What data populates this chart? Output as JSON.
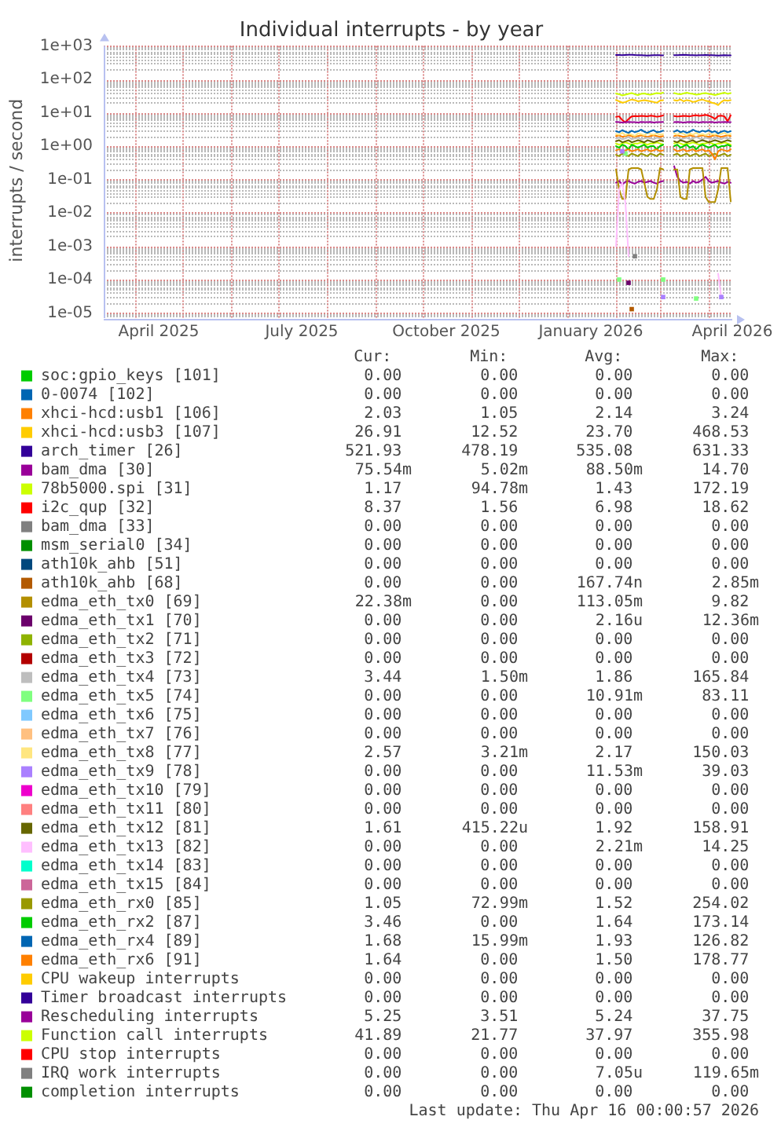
{
  "chart_data": {
    "type": "line",
    "title": "Individual interrupts - by year",
    "ylabel": "interrupts / second",
    "log": true,
    "grid": true,
    "legend": "bottom",
    "xlim": [
      "2025-03-12",
      "2026-04-16"
    ],
    "xticks": [
      {
        "value": "2025-04-01",
        "label": null
      },
      {
        "value": "2025-04-16",
        "label": "April 2025"
      },
      {
        "value": "2025-05-01",
        "label": null
      },
      {
        "value": "2025-06-01",
        "label": null
      },
      {
        "value": "2025-07-01",
        "label": null
      },
      {
        "value": "2025-07-16",
        "label": "July 2025"
      },
      {
        "value": "2025-08-01",
        "label": null
      },
      {
        "value": "2025-09-01",
        "label": null
      },
      {
        "value": "2025-10-01",
        "label": null
      },
      {
        "value": "2025-10-16",
        "label": "October 2025"
      },
      {
        "value": "2025-11-01",
        "label": null
      },
      {
        "value": "2025-12-01",
        "label": null
      },
      {
        "value": "2026-01-01",
        "label": null
      },
      {
        "value": "2026-01-16",
        "label": "January 2026"
      },
      {
        "value": "2026-02-01",
        "label": null
      },
      {
        "value": "2026-03-01",
        "label": null
      },
      {
        "value": "2026-04-01",
        "label": null
      },
      {
        "value": "2026-04-16",
        "label": "April 2026"
      }
    ],
    "ylim": [
      7e-06,
      1000
    ],
    "yticks": [
      {
        "value": 8e-06,
        "label": null
      },
      {
        "value": 9e-06,
        "label": null
      },
      {
        "value": 1e-05,
        "label": "1e-05"
      },
      {
        "value": 2e-05,
        "label": null
      },
      {
        "value": 3e-05,
        "label": null
      },
      {
        "value": 4e-05,
        "label": null
      },
      {
        "value": 5e-05,
        "label": null
      },
      {
        "value": 6e-05,
        "label": null
      },
      {
        "value": 7e-05,
        "label": null
      },
      {
        "value": 8e-05,
        "label": null
      },
      {
        "value": 9e-05,
        "label": null
      },
      {
        "value": 0.0001,
        "label": "1e-04"
      },
      {
        "value": 0.0002,
        "label": null
      },
      {
        "value": 0.0003,
        "label": null
      },
      {
        "value": 0.0004,
        "label": null
      },
      {
        "value": 0.0005,
        "label": null
      },
      {
        "value": 0.0006,
        "label": null
      },
      {
        "value": 0.0007,
        "label": null
      },
      {
        "value": 0.0008,
        "label": null
      },
      {
        "value": 0.0009,
        "label": null
      },
      {
        "value": 0.001,
        "label": "1e-03"
      },
      {
        "value": 0.002,
        "label": null
      },
      {
        "value": 0.003,
        "label": null
      },
      {
        "value": 0.004,
        "label": null
      },
      {
        "value": 0.005,
        "label": null
      },
      {
        "value": 0.006,
        "label": null
      },
      {
        "value": 0.007,
        "label": null
      },
      {
        "value": 0.008,
        "label": null
      },
      {
        "value": 0.009,
        "label": null
      },
      {
        "value": 0.01,
        "label": "1e-02"
      },
      {
        "value": 0.02,
        "label": null
      },
      {
        "value": 0.03,
        "label": null
      },
      {
        "value": 0.04,
        "label": null
      },
      {
        "value": 0.05,
        "label": null
      },
      {
        "value": 0.06,
        "label": null
      },
      {
        "value": 0.07,
        "label": null
      },
      {
        "value": 0.08,
        "label": null
      },
      {
        "value": 0.09,
        "label": null
      },
      {
        "value": 0.1,
        "label": "1e-01"
      },
      {
        "value": 0.2,
        "label": null
      },
      {
        "value": 0.3,
        "label": null
      },
      {
        "value": 0.4,
        "label": null
      },
      {
        "value": 0.5,
        "label": null
      },
      {
        "value": 0.6,
        "label": null
      },
      {
        "value": 0.7,
        "label": null
      },
      {
        "value": 0.8,
        "label": null
      },
      {
        "value": 0.9,
        "label": null
      },
      {
        "value": 1,
        "label": "1e+00"
      },
      {
        "value": 2,
        "label": null
      },
      {
        "value": 3,
        "label": null
      },
      {
        "value": 4,
        "label": null
      },
      {
        "value": 5,
        "label": null
      },
      {
        "value": 6,
        "label": null
      },
      {
        "value": 7,
        "label": null
      },
      {
        "value": 8,
        "label": null
      },
      {
        "value": 9,
        "label": null
      },
      {
        "value": 10,
        "label": "1e+01"
      },
      {
        "value": 20,
        "label": null
      },
      {
        "value": 30,
        "label": null
      },
      {
        "value": 40,
        "label": null
      },
      {
        "value": 50,
        "label": null
      },
      {
        "value": 60,
        "label": null
      },
      {
        "value": 70,
        "label": null
      },
      {
        "value": 80,
        "label": null
      },
      {
        "value": 90,
        "label": null
      },
      {
        "value": 100,
        "label": "1e+02"
      },
      {
        "value": 200,
        "label": null
      },
      {
        "value": 300,
        "label": null
      },
      {
        "value": 400,
        "label": null
      },
      {
        "value": 500,
        "label": null
      },
      {
        "value": 600,
        "label": null
      },
      {
        "value": 700,
        "label": null
      },
      {
        "value": 800,
        "label": null
      },
      {
        "value": 900,
        "label": null
      },
      {
        "value": 1000,
        "label": "1e+03"
      }
    ],
    "x": [
      "2026-02-01",
      "2026-02-03",
      "2026-02-05",
      "2026-02-07",
      "2026-02-09",
      "2026-02-11",
      "2026-02-13",
      "2026-02-15",
      "2026-02-17",
      "2026-02-19",
      "2026-02-21",
      "2026-02-23",
      "2026-02-25",
      "2026-02-27",
      "2026-03-01",
      "2026-03-03",
      "2026-03-06",
      "2026-03-10",
      "2026-03-12",
      "2026-03-14",
      "2026-03-16",
      "2026-03-18",
      "2026-03-20",
      "2026-03-22",
      "2026-03-24",
      "2026-03-26",
      "2026-03-28",
      "2026-03-30",
      "2026-04-01",
      "2026-04-03",
      "2026-04-05",
      "2026-04-07",
      "2026-04-09",
      "2026-04-11",
      "2026-04-13",
      "2026-04-15"
    ],
    "series": [
      {
        "name": "soc:gpio_keys [101]",
        "color": "#00cc00",
        "values": [
          null,
          null,
          null,
          null,
          null,
          null,
          null,
          null,
          null,
          null,
          null,
          null,
          null,
          null,
          null,
          null,
          null,
          null,
          null,
          null,
          null,
          null,
          null,
          null,
          null,
          null,
          null,
          null,
          null,
          null,
          null,
          null,
          null,
          null,
          null,
          null
        ]
      },
      {
        "name": "0-0074 [102]",
        "color": "#0066b3",
        "values": [
          null,
          null,
          null,
          null,
          null,
          null,
          null,
          null,
          null,
          null,
          null,
          null,
          null,
          null,
          null,
          null,
          null,
          null,
          null,
          null,
          null,
          null,
          null,
          null,
          null,
          null,
          null,
          null,
          null,
          null,
          null,
          null,
          null,
          null,
          null,
          null
        ]
      },
      {
        "name": "xhci-hcd:usb1 [106]",
        "color": "#ff8000",
        "values": [
          2.0,
          2.1,
          1.9,
          2.0,
          2.1,
          2.0,
          1.9,
          2.0,
          2.1,
          2.0,
          1.9,
          2.0,
          2.1,
          2.0,
          1.9,
          2.0,
          null,
          2.0,
          2.1,
          2.0,
          1.9,
          2.0,
          2.1,
          2.0,
          1.9,
          2.0,
          2.1,
          2.0,
          1.9,
          2.0,
          2.1,
          2.0,
          1.9,
          2.0,
          2.1,
          2.0
        ]
      },
      {
        "name": "xhci-hcd:usb3 [107]",
        "color": "#ffcc00",
        "values": [
          24,
          22,
          20,
          21,
          23,
          25,
          24,
          22,
          23,
          24,
          23,
          22,
          21,
          20,
          23,
          24,
          null,
          24,
          23,
          25,
          22,
          24,
          23,
          21,
          22,
          24,
          25,
          23,
          22,
          20,
          19,
          17,
          21,
          24,
          23,
          24
        ]
      },
      {
        "name": "arch_timer [26]",
        "color": "#330099",
        "values": [
          540,
          538,
          535,
          540,
          545,
          550,
          540,
          535,
          530,
          525,
          520,
          525,
          530,
          535,
          530,
          528,
          null,
          530,
          535,
          540,
          545,
          540,
          535,
          530,
          525,
          530,
          535,
          540,
          535,
          530,
          525,
          520,
          525,
          530,
          525,
          522
        ]
      },
      {
        "name": "bam_dma [30]",
        "color": "#990099",
        "values": [
          0.08,
          0.09,
          0.07,
          0.085,
          0.09,
          0.08,
          0.075,
          0.085,
          0.09,
          0.08,
          0.085,
          0.09,
          0.08,
          0.075,
          0.085,
          0.09,
          null,
          0.25,
          0.12,
          0.09,
          0.08,
          0.085,
          0.075,
          0.09,
          0.08,
          0.085,
          0.1,
          0.12,
          0.09,
          0.08,
          0.085,
          0.09,
          0.08,
          0.075,
          0.085,
          0.08
        ]
      },
      {
        "name": "78b5000.spi [31]",
        "color": "#ccff00",
        "values": [
          1.2,
          1.1,
          1.2,
          1.3,
          1.2,
          1.1,
          1.2,
          1.2,
          1.3,
          1.2,
          1.1,
          1.2,
          1.2,
          1.3,
          1.2,
          1.1,
          null,
          1.2,
          1.3,
          1.2,
          1.1,
          1.2,
          1.2,
          1.3,
          1.2,
          1.1,
          1.2,
          1.2,
          1.3,
          1.2,
          1.1,
          1.2,
          1.2,
          1.3,
          1.2,
          1.1
        ]
      },
      {
        "name": "i2c_qup [32]",
        "color": "#ff0000",
        "values": [
          7.5,
          7.8,
          6.0,
          5.2,
          6.5,
          7.8,
          8.0,
          7.9,
          8.1,
          8.0,
          7.8,
          8.2,
          8.0,
          7.6,
          7.9,
          8.3,
          null,
          8.0,
          7.7,
          7.9,
          8.1,
          8.0,
          7.8,
          8.2,
          8.4,
          8.1,
          8.3,
          8.6,
          8.2,
          7.5,
          6.5,
          8.0,
          8.2,
          7.8,
          5.5,
          8.4
        ]
      },
      {
        "name": "bam_dma [33]",
        "color": "#808080",
        "values": [
          null,
          null,
          null,
          null,
          null,
          null,
          null,
          null,
          null,
          null,
          null,
          null,
          null,
          null,
          null,
          null,
          null,
          null,
          null,
          null,
          null,
          null,
          null,
          null,
          null,
          null,
          null,
          null,
          null,
          null,
          null,
          null,
          null,
          null,
          null,
          null
        ]
      },
      {
        "name": "msm_serial0 [34]",
        "color": "#008f00",
        "values": [
          null,
          null,
          null,
          null,
          null,
          null,
          null,
          null,
          null,
          null,
          null,
          null,
          null,
          null,
          null,
          null,
          null,
          null,
          null,
          null,
          null,
          null,
          null,
          null,
          null,
          null,
          null,
          null,
          null,
          null,
          null,
          null,
          null,
          null,
          null,
          null
        ]
      },
      {
        "name": "ath10k_ahb [51]",
        "color": "#00487d",
        "values": [
          null,
          null,
          null,
          null,
          null,
          null,
          null,
          null,
          null,
          null,
          null,
          null,
          null,
          null,
          null,
          null,
          null,
          null,
          null,
          null,
          null,
          null,
          null,
          null,
          null,
          null,
          null,
          null,
          null,
          null,
          null,
          null,
          null,
          null,
          null,
          null
        ]
      },
      {
        "name": "ath10k_ahb [68]",
        "color": "#b35a00",
        "type": "scatter",
        "marker": "square",
        "values": [
          null,
          null,
          null,
          null,
          null,
          1.3e-05,
          null,
          null,
          null,
          null,
          null,
          null,
          null,
          null,
          null,
          null,
          null,
          null,
          null,
          null,
          null,
          null,
          null,
          null,
          null,
          null,
          null,
          null,
          null,
          null,
          null,
          null,
          null,
          null,
          null,
          null
        ]
      },
      {
        "name": "edma_eth_tx0 [69]",
        "color": "#b38f00",
        "values": [
          0.2,
          0.05,
          0.026,
          0.026,
          0.2,
          0.22,
          0.22,
          0.22,
          0.2,
          0.08,
          0.03,
          0.026,
          0.026,
          0.05,
          0.22,
          0.2,
          null,
          0.2,
          0.2,
          0.03,
          0.026,
          0.026,
          0.2,
          0.22,
          0.22,
          0.22,
          0.22,
          0.03,
          0.021,
          0.021,
          0.021,
          0.05,
          0.22,
          0.22,
          0.22,
          0.022
        ]
      },
      {
        "name": "edma_eth_tx1 [70]",
        "color": "#6b006b",
        "type": "scatter",
        "marker": "square",
        "values": [
          null,
          null,
          null,
          null,
          8e-05,
          null,
          null,
          null,
          null,
          null,
          null,
          null,
          null,
          null,
          null,
          null,
          null,
          null,
          null,
          null,
          null,
          null,
          null,
          null,
          null,
          null,
          null,
          null,
          null,
          null,
          null,
          null,
          null,
          null,
          null,
          null
        ]
      },
      {
        "name": "edma_eth_tx2 [71]",
        "color": "#8fb300",
        "values": [
          null,
          null,
          null,
          null,
          null,
          null,
          null,
          null,
          null,
          null,
          null,
          null,
          null,
          null,
          null,
          null,
          null,
          null,
          null,
          null,
          null,
          null,
          null,
          null,
          null,
          null,
          null,
          null,
          null,
          null,
          null,
          null,
          null,
          null,
          null,
          null
        ]
      },
      {
        "name": "edma_eth_tx3 [72]",
        "color": "#b30000",
        "values": [
          null,
          null,
          null,
          null,
          null,
          null,
          null,
          null,
          null,
          null,
          null,
          null,
          null,
          null,
          null,
          null,
          null,
          null,
          null,
          null,
          null,
          null,
          null,
          null,
          null,
          null,
          null,
          null,
          null,
          null,
          null,
          null,
          null,
          null,
          null,
          null
        ]
      },
      {
        "name": "edma_eth_tx4 [73]",
        "color": "#bebebe",
        "values": [
          1.7,
          1.8,
          1.6,
          1.7,
          1.9,
          1.6,
          1.7,
          1.8,
          1.6,
          1.7,
          1.8,
          1.7,
          1.6,
          1.8,
          1.7,
          1.6,
          null,
          1.7,
          1.8,
          1.6,
          1.7,
          1.8,
          1.6,
          1.7,
          1.9,
          1.7,
          1.6,
          1.8,
          1.7,
          1.6,
          1.8,
          1.7,
          1.6,
          1.8,
          1.7,
          1.7
        ]
      },
      {
        "name": "edma_eth_tx5 [74]",
        "color": "#80ff80",
        "type": "scatter",
        "marker": "square",
        "values": [
          null,
          0.0001,
          null,
          0.6,
          null,
          null,
          null,
          null,
          null,
          null,
          null,
          null,
          null,
          null,
          null,
          0.0001,
          null,
          null,
          null,
          null,
          null,
          null,
          null,
          null,
          2.7e-05,
          null,
          null,
          null,
          null,
          null,
          null,
          null,
          null,
          null,
          null,
          null
        ]
      },
      {
        "name": "edma_eth_tx6 [75]",
        "color": "#80c9ff",
        "values": [
          null,
          null,
          null,
          null,
          null,
          null,
          null,
          null,
          null,
          null,
          null,
          null,
          null,
          null,
          null,
          null,
          null,
          null,
          null,
          null,
          null,
          null,
          null,
          null,
          null,
          null,
          null,
          null,
          null,
          null,
          null,
          null,
          null,
          null,
          null,
          null
        ]
      },
      {
        "name": "edma_eth_tx7 [76]",
        "color": "#ffc080",
        "values": [
          null,
          null,
          null,
          null,
          null,
          null,
          null,
          null,
          null,
          null,
          null,
          null,
          null,
          null,
          null,
          null,
          null,
          null,
          null,
          null,
          null,
          null,
          null,
          null,
          null,
          null,
          null,
          null,
          null,
          null,
          null,
          null,
          null,
          null,
          null,
          null
        ]
      },
      {
        "name": "edma_eth_tx8 [77]",
        "color": "#ffe680",
        "values": [
          2.3,
          2.2,
          2.5,
          2.1,
          2.4,
          2.2,
          2.0,
          2.4,
          2.3,
          2.1,
          2.5,
          2.3,
          2.2,
          2.4,
          2.2,
          2.3,
          null,
          2.4,
          2.2,
          2.5,
          2.3,
          2.1,
          2.4,
          2.2,
          2.5,
          2.2,
          2.3,
          2.1,
          2.4,
          2.3,
          2.2,
          2.4,
          2.3,
          2.5,
          2.2,
          2.3
        ]
      },
      {
        "name": "edma_eth_tx9 [78]",
        "color": "#aa80ff",
        "type": "scatter",
        "marker": "square",
        "values": [
          null,
          null,
          0.7,
          null,
          null,
          null,
          null,
          null,
          null,
          null,
          null,
          null,
          null,
          null,
          null,
          3e-05,
          null,
          null,
          null,
          null,
          null,
          null,
          null,
          null,
          null,
          null,
          null,
          null,
          null,
          null,
          null,
          null,
          3e-05,
          null,
          null,
          null
        ]
      },
      {
        "name": "edma_eth_tx10 [79]",
        "color": "#ee00cc",
        "values": [
          null,
          null,
          null,
          null,
          null,
          null,
          null,
          null,
          null,
          null,
          null,
          null,
          null,
          null,
          null,
          null,
          null,
          null,
          null,
          null,
          null,
          null,
          null,
          null,
          null,
          null,
          null,
          null,
          null,
          null,
          null,
          null,
          null,
          null,
          null,
          null
        ]
      },
      {
        "name": "edma_eth_tx11 [80]",
        "color": "#ff8080",
        "values": [
          null,
          null,
          null,
          null,
          null,
          null,
          null,
          null,
          null,
          null,
          null,
          null,
          null,
          null,
          null,
          null,
          null,
          null,
          null,
          null,
          null,
          null,
          null,
          null,
          null,
          null,
          null,
          null,
          null,
          null,
          null,
          null,
          null,
          null,
          null,
          null
        ]
      },
      {
        "name": "edma_eth_tx12 [81]",
        "color": "#666600",
        "values": [
          1.4,
          1.5,
          1.3,
          1.4,
          1.5,
          1.3,
          1.4,
          1.5,
          1.4,
          1.3,
          1.5,
          1.4,
          1.3,
          1.4,
          1.5,
          1.4,
          null,
          1.4,
          1.3,
          1.5,
          1.4,
          1.3,
          1.4,
          1.5,
          1.3,
          1.4,
          1.5,
          1.4,
          1.3,
          1.4,
          1.5,
          1.4,
          1.3,
          1.4,
          1.5,
          1.4
        ]
      },
      {
        "name": "edma_eth_tx13 [82]",
        "color": "#ffbfff",
        "values": [
          0.001,
          0.05,
          0.08,
          0.02,
          0.0005,
          null,
          null,
          null,
          null,
          null,
          null,
          null,
          null,
          null,
          null,
          null,
          null,
          null,
          null,
          null,
          null,
          null,
          null,
          null,
          null,
          null,
          null,
          null,
          null,
          null,
          null,
          0.00015,
          3e-05,
          null,
          null,
          null
        ]
      },
      {
        "name": "edma_eth_tx14 [83]",
        "color": "#00ffcc",
        "values": [
          null,
          null,
          null,
          null,
          null,
          null,
          null,
          null,
          null,
          null,
          null,
          null,
          null,
          null,
          null,
          null,
          null,
          null,
          null,
          null,
          null,
          null,
          null,
          null,
          null,
          null,
          null,
          null,
          null,
          null,
          null,
          null,
          null,
          null,
          null,
          null
        ]
      },
      {
        "name": "edma_eth_tx15 [84]",
        "color": "#cc6699",
        "values": [
          null,
          null,
          null,
          null,
          null,
          null,
          null,
          null,
          null,
          null,
          null,
          null,
          null,
          null,
          null,
          null,
          null,
          null,
          null,
          null,
          null,
          null,
          null,
          null,
          null,
          null,
          null,
          null,
          null,
          null,
          null,
          null,
          null,
          null,
          null,
          null
        ]
      },
      {
        "name": "edma_eth_rx0 [85]",
        "color": "#999900",
        "values": [
          0.55,
          0.5,
          0.6,
          0.55,
          0.5,
          0.6,
          0.55,
          0.5,
          0.6,
          0.55,
          0.5,
          0.6,
          0.55,
          0.5,
          0.6,
          0.55,
          null,
          0.55,
          0.6,
          0.5,
          0.55,
          0.6,
          0.5,
          0.55,
          0.6,
          0.5,
          0.55,
          0.6,
          0.5,
          0.55,
          0.6,
          0.5,
          0.55,
          0.6,
          0.5,
          0.55
        ]
      },
      {
        "name": "edma_eth_rx2 [87]",
        "color": "#00cc00",
        "values": [
          1.0,
          0.9,
          1.1,
          1.0,
          0.8,
          1.1,
          1.0,
          0.9,
          1.0,
          1.1,
          0.9,
          1.0,
          1.0,
          0.8,
          1.0,
          1.1,
          null,
          1.0,
          1.1,
          0.9,
          1.0,
          1.1,
          0.9,
          1.0,
          0.8,
          1.0,
          1.1,
          1.0,
          0.9,
          1.0,
          1.1,
          0.9,
          1.0,
          1.0,
          1.1,
          1.0
        ]
      },
      {
        "name": "edma_eth_rx4 [89]",
        "color": "#0066b3",
        "values": [
          2.8,
          2.6,
          3.0,
          2.7,
          2.5,
          2.9,
          2.6,
          2.8,
          3.1,
          2.7,
          2.5,
          2.8,
          3.0,
          2.6,
          2.7,
          2.9,
          null,
          2.7,
          3.0,
          2.6,
          2.8,
          2.5,
          2.7,
          3.1,
          2.8,
          2.6,
          2.9,
          2.7,
          3.0,
          2.6,
          2.8,
          2.4,
          2.7,
          2.9,
          2.6,
          2.8
        ]
      },
      {
        "name": "edma_eth_rx6 [91]",
        "color": "#ff8000",
        "values": [
          0.75,
          0.8,
          0.7,
          0.75,
          0.8,
          0.7,
          0.75,
          0.8,
          0.7,
          0.75,
          0.8,
          0.7,
          0.75,
          0.8,
          0.7,
          0.75,
          null,
          0.8,
          0.7,
          0.75,
          0.8,
          0.7,
          0.75,
          0.8,
          0.7,
          0.75,
          0.8,
          0.7,
          0.75,
          0.6,
          0.4,
          0.7,
          0.8,
          0.75,
          0.7,
          0.8
        ]
      },
      {
        "name": "CPU wakeup interrupts",
        "color": "#ffcc00",
        "values": [
          null,
          null,
          null,
          null,
          null,
          null,
          null,
          null,
          null,
          null,
          null,
          null,
          null,
          null,
          null,
          null,
          null,
          null,
          null,
          null,
          null,
          null,
          null,
          null,
          null,
          null,
          null,
          null,
          null,
          null,
          null,
          null,
          null,
          null,
          null,
          null
        ]
      },
      {
        "name": "Timer broadcast interrupts",
        "color": "#330099",
        "values": [
          null,
          null,
          null,
          null,
          null,
          null,
          null,
          null,
          null,
          null,
          null,
          null,
          null,
          null,
          null,
          null,
          null,
          null,
          null,
          null,
          null,
          null,
          null,
          null,
          null,
          null,
          null,
          null,
          null,
          null,
          null,
          null,
          null,
          null,
          null,
          null
        ]
      },
      {
        "name": "Rescheduling interrupts",
        "color": "#990099",
        "values": [
          5.3,
          5.2,
          5.1,
          5.2,
          5.3,
          5.2,
          5.2,
          5.1,
          5.3,
          5.2,
          5.2,
          5.3,
          5.1,
          5.2,
          5.2,
          5.3,
          null,
          5.2,
          5.3,
          5.2,
          5.1,
          5.2,
          5.3,
          5.2,
          5.2,
          5.1,
          5.3,
          5.2,
          5.2,
          5.3,
          5.1,
          5.2,
          5.2,
          5.3,
          5.2,
          5.2
        ]
      },
      {
        "name": "Function call interrupts",
        "color": "#ccff00",
        "values": [
          38,
          36,
          33,
          35,
          37,
          39,
          36,
          34,
          37,
          38,
          36,
          35,
          37,
          39,
          38,
          40,
          null,
          39,
          37,
          36,
          38,
          40,
          38,
          37,
          35,
          36,
          38,
          39,
          37,
          36,
          34,
          36,
          38,
          40,
          37,
          39
        ]
      },
      {
        "name": "CPU stop interrupts",
        "color": "#ff0000",
        "values": [
          null,
          null,
          null,
          null,
          null,
          null,
          null,
          null,
          null,
          null,
          null,
          null,
          null,
          null,
          null,
          null,
          null,
          null,
          null,
          null,
          null,
          null,
          null,
          null,
          null,
          null,
          null,
          null,
          null,
          null,
          null,
          null,
          null,
          null,
          null,
          null
        ]
      },
      {
        "name": "IRQ work interrupts",
        "color": "#808080",
        "type": "scatter",
        "marker": "square",
        "values": [
          null,
          null,
          null,
          null,
          null,
          null,
          0.0005,
          null,
          null,
          null,
          null,
          null,
          null,
          null,
          null,
          null,
          null,
          null,
          null,
          null,
          null,
          null,
          null,
          null,
          null,
          null,
          null,
          null,
          null,
          null,
          null,
          null,
          null,
          null,
          null,
          null
        ]
      },
      {
        "name": "completion interrupts",
        "color": "#008f00",
        "values": [
          null,
          null,
          null,
          null,
          null,
          null,
          null,
          null,
          null,
          null,
          null,
          null,
          null,
          null,
          null,
          null,
          null,
          null,
          null,
          null,
          null,
          null,
          null,
          null,
          null,
          null,
          null,
          null,
          null,
          null,
          null,
          null,
          null,
          null,
          null,
          null
        ]
      }
    ],
    "annotations": [
      "Cur:",
      "Min:",
      "Avg:",
      "Max:",
      "0.00",
      "0.00",
      "0.00",
      "0.00",
      "0.00",
      "0.00",
      "0.00",
      "0.00",
      "2.03",
      "1.05",
      "2.14",
      "3.24",
      "26.91",
      "12.52",
      "23.70",
      "468.53",
      "521.93",
      "478.19",
      "535.08",
      "631.33",
      "75.54m",
      "5.02m",
      "88.50m",
      "14.70",
      "1.17",
      "94.78m",
      "1.43",
      "172.19",
      "8.37",
      "1.56",
      "6.98",
      "18.62",
      "0.00",
      "0.00",
      "0.00",
      "0.00",
      "0.00",
      "0.00",
      "0.00",
      "0.00",
      "0.00",
      "0.00",
      "0.00",
      "0.00",
      "0.00",
      "0.00",
      "167.74n",
      "2.85m",
      "22.38m",
      "0.00",
      "113.05m",
      "9.82",
      "0.00",
      "0.00",
      "2.16u",
      "12.36m",
      "0.00",
      "0.00",
      "0.00",
      "0.00",
      "0.00",
      "0.00",
      "0.00",
      "0.00",
      "3.44",
      "1.50m",
      "1.86",
      "165.84",
      "0.00",
      "0.00",
      "10.91m",
      "83.11",
      "0.00",
      "0.00",
      "0.00",
      "0.00",
      "0.00",
      "0.00",
      "0.00",
      "0.00",
      "2.57",
      "3.21m",
      "2.17",
      "150.03",
      "0.00",
      "0.00",
      "11.53m",
      "39.03",
      "0.00",
      "0.00",
      "0.00",
      "0.00",
      "0.00",
      "0.00",
      "0.00",
      "0.00",
      "1.61",
      "415.22u",
      "1.92",
      "158.91",
      "0.00",
      "0.00",
      "2.21m",
      "14.25",
      "0.00",
      "0.00",
      "0.00",
      "0.00",
      "0.00",
      "0.00",
      "0.00",
      "0.00",
      "1.05",
      "72.99m",
      "1.52",
      "254.02",
      "3.46",
      "0.00",
      "1.64",
      "173.14",
      "1.68",
      "15.99m",
      "1.93",
      "126.82",
      "1.64",
      "0.00",
      "1.50",
      "178.77",
      "0.00",
      "0.00",
      "0.00",
      "0.00",
      "0.00",
      "0.00",
      "0.00",
      "0.00",
      "5.25",
      "3.51",
      "5.24",
      "37.75",
      "41.89",
      "21.77",
      "37.97",
      "355.98",
      "0.00",
      "0.00",
      "0.00",
      "0.00",
      "0.00",
      "0.00",
      "7.05u",
      "119.65m",
      "0.00",
      "0.00",
      "0.00",
      "0.00",
      "Last update: Thu Apr 16 00:00:57 2026"
    ]
  }
}
